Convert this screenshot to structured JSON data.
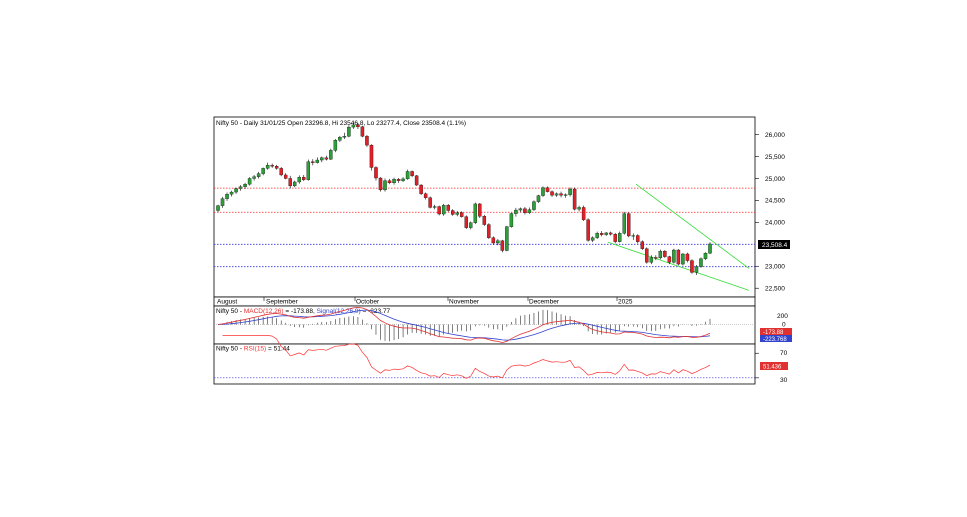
{
  "price_panel": {
    "header": "Nifty 50 - Daily 31/01/25 Open 23296.8, Hi 23546.8, Lo 23277.4, Close 23508.4 (1.1%)",
    "last_price_label": "23,508.4",
    "y_ticks": [
      {
        "value": 26000,
        "label": "26,000"
      },
      {
        "value": 25500,
        "label": "25,500"
      },
      {
        "value": 25000,
        "label": "25,000"
      },
      {
        "value": 24500,
        "label": "24,500"
      },
      {
        "value": 24000,
        "label": "24,000"
      },
      {
        "value": 23000,
        "label": "23,000"
      },
      {
        "value": 22500,
        "label": "22,500"
      }
    ],
    "months": [
      "August",
      "September",
      "October",
      "November",
      "December",
      "2025"
    ]
  },
  "macd_panel": {
    "title_prefix": "Nifty 50 - ",
    "macd_label": "MACD(12,26)",
    "macd_value": " = -173.88, ",
    "signal_label": "Signal(12,26,9)",
    "signal_value": " = -223.77",
    "y_ticks": [
      {
        "value": 200,
        "label": "200"
      },
      {
        "value": 0,
        "label": "0"
      }
    ],
    "badge_macd": "-173.88",
    "badge_signal": "-223.768"
  },
  "rsi_panel": {
    "title_prefix": "Nifty 50 - ",
    "rsi_label": "RSI(15)",
    "rsi_value": " = 51.44",
    "y_ticks": [
      {
        "value": 70,
        "label": "70"
      },
      {
        "value": 30,
        "label": "30"
      }
    ],
    "badge": "51.436"
  },
  "colors": {
    "up": "#2e9e3a",
    "down": "#e01f26",
    "macd": "#e03030",
    "signal": "#3344cc",
    "rsi": "#ff3030",
    "channel": "#33dd33",
    "resistance": "#ff2020",
    "support": "#3333dd"
  },
  "chart_data": {
    "type": "candlestick",
    "series_name": "Nifty 50",
    "ylim": [
      22300,
      26400
    ],
    "horizontal_lines": [
      {
        "value": 24780,
        "style": "dotted",
        "color": "red"
      },
      {
        "value": 24230,
        "style": "dotted",
        "color": "red"
      },
      {
        "value": 23500,
        "style": "dotted",
        "color": "blue"
      },
      {
        "value": 22990,
        "style": "dotted",
        "color": "blue"
      }
    ],
    "trend_channel": {
      "upper": [
        {
          "date": "2024-12-27",
          "value": 24870
        },
        {
          "date": "2025-02-05",
          "value": 22950
        }
      ],
      "lower": [
        {
          "date": "2024-12-17",
          "value": 23550
        },
        {
          "date": "2025-02-05",
          "value": 22450
        }
      ]
    },
    "candles": [
      {
        "o": 24270,
        "h": 24400,
        "l": 24230,
        "c": 24380
      },
      {
        "o": 24380,
        "h": 24580,
        "l": 24330,
        "c": 24540
      },
      {
        "o": 24540,
        "h": 24680,
        "l": 24490,
        "c": 24640
      },
      {
        "o": 24640,
        "h": 24720,
        "l": 24590,
        "c": 24690
      },
      {
        "o": 24690,
        "h": 24790,
        "l": 24650,
        "c": 24770
      },
      {
        "o": 24770,
        "h": 24850,
        "l": 24720,
        "c": 24810
      },
      {
        "o": 24810,
        "h": 24900,
        "l": 24760,
        "c": 24870
      },
      {
        "o": 24870,
        "h": 25030,
        "l": 24840,
        "c": 25000
      },
      {
        "o": 25000,
        "h": 25080,
        "l": 24950,
        "c": 25040
      },
      {
        "o": 25040,
        "h": 25150,
        "l": 25000,
        "c": 25110
      },
      {
        "o": 25110,
        "h": 25250,
        "l": 25070,
        "c": 25230
      },
      {
        "o": 25230,
        "h": 25360,
        "l": 25200,
        "c": 25300
      },
      {
        "o": 25300,
        "h": 25340,
        "l": 25240,
        "c": 25280
      },
      {
        "o": 25280,
        "h": 25310,
        "l": 25200,
        "c": 25230
      },
      {
        "o": 25230,
        "h": 25260,
        "l": 25050,
        "c": 25080
      },
      {
        "o": 25080,
        "h": 25120,
        "l": 24980,
        "c": 25000
      },
      {
        "o": 25000,
        "h": 25060,
        "l": 24770,
        "c": 24830
      },
      {
        "o": 24830,
        "h": 24950,
        "l": 24800,
        "c": 24920
      },
      {
        "o": 24920,
        "h": 25070,
        "l": 24880,
        "c": 25030
      },
      {
        "o": 25030,
        "h": 25080,
        "l": 24940,
        "c": 24970
      },
      {
        "o": 24970,
        "h": 25430,
        "l": 24950,
        "c": 25380
      },
      {
        "o": 25380,
        "h": 25440,
        "l": 25300,
        "c": 25360
      },
      {
        "o": 25360,
        "h": 25480,
        "l": 25340,
        "c": 25420
      },
      {
        "o": 25420,
        "h": 25500,
        "l": 25370,
        "c": 25470
      },
      {
        "o": 25470,
        "h": 25520,
        "l": 25410,
        "c": 25440
      },
      {
        "o": 25440,
        "h": 25680,
        "l": 25420,
        "c": 25640
      },
      {
        "o": 25640,
        "h": 25900,
        "l": 25600,
        "c": 25870
      },
      {
        "o": 25870,
        "h": 25970,
        "l": 25830,
        "c": 25940
      },
      {
        "o": 25940,
        "h": 26040,
        "l": 25900,
        "c": 25960
      },
      {
        "o": 25960,
        "h": 26210,
        "l": 25940,
        "c": 26170
      },
      {
        "o": 26170,
        "h": 26280,
        "l": 26130,
        "c": 26220
      },
      {
        "o": 26220,
        "h": 26260,
        "l": 26130,
        "c": 26180
      },
      {
        "o": 26180,
        "h": 26200,
        "l": 25940,
        "c": 25960
      },
      {
        "o": 25960,
        "h": 25990,
        "l": 25720,
        "c": 25760
      },
      {
        "o": 25760,
        "h": 25780,
        "l": 25180,
        "c": 25250
      },
      {
        "o": 25250,
        "h": 25280,
        "l": 24950,
        "c": 25010
      },
      {
        "o": 25010,
        "h": 25030,
        "l": 24700,
        "c": 24740
      },
      {
        "o": 24740,
        "h": 25000,
        "l": 24700,
        "c": 24950
      },
      {
        "o": 24950,
        "h": 24990,
        "l": 24870,
        "c": 24900
      },
      {
        "o": 24900,
        "h": 25020,
        "l": 24860,
        "c": 24980
      },
      {
        "o": 24980,
        "h": 25010,
        "l": 24900,
        "c": 24950
      },
      {
        "o": 24950,
        "h": 25030,
        "l": 24920,
        "c": 24990
      },
      {
        "o": 24990,
        "h": 25200,
        "l": 24970,
        "c": 25160
      },
      {
        "o": 25160,
        "h": 25180,
        "l": 25030,
        "c": 25060
      },
      {
        "o": 25060,
        "h": 25080,
        "l": 24830,
        "c": 24850
      },
      {
        "o": 24850,
        "h": 24870,
        "l": 24620,
        "c": 24650
      },
      {
        "o": 24650,
        "h": 24680,
        "l": 24520,
        "c": 24560
      },
      {
        "o": 24560,
        "h": 24590,
        "l": 24320,
        "c": 24340
      },
      {
        "o": 24340,
        "h": 24400,
        "l": 24300,
        "c": 24360
      },
      {
        "o": 24360,
        "h": 24380,
        "l": 24160,
        "c": 24190
      },
      {
        "o": 24190,
        "h": 24420,
        "l": 24150,
        "c": 24390
      },
      {
        "o": 24390,
        "h": 24420,
        "l": 24240,
        "c": 24270
      },
      {
        "o": 24270,
        "h": 24300,
        "l": 24150,
        "c": 24180
      },
      {
        "o": 24180,
        "h": 24260,
        "l": 24140,
        "c": 24220
      },
      {
        "o": 24220,
        "h": 24250,
        "l": 24110,
        "c": 24130
      },
      {
        "o": 24130,
        "h": 24160,
        "l": 23850,
        "c": 23880
      },
      {
        "o": 23880,
        "h": 24020,
        "l": 23840,
        "c": 23990
      },
      {
        "o": 23990,
        "h": 24450,
        "l": 23960,
        "c": 24420
      },
      {
        "o": 24420,
        "h": 24440,
        "l": 24100,
        "c": 24140
      },
      {
        "o": 24140,
        "h": 24170,
        "l": 23920,
        "c": 23950
      },
      {
        "o": 23950,
        "h": 23980,
        "l": 23620,
        "c": 23650
      },
      {
        "o": 23650,
        "h": 23680,
        "l": 23490,
        "c": 23530
      },
      {
        "o": 23530,
        "h": 23620,
        "l": 23480,
        "c": 23580
      },
      {
        "o": 23580,
        "h": 23600,
        "l": 23320,
        "c": 23360
      },
      {
        "o": 23360,
        "h": 23920,
        "l": 23340,
        "c": 23900
      },
      {
        "o": 23900,
        "h": 24220,
        "l": 23880,
        "c": 24200
      },
      {
        "o": 24200,
        "h": 24330,
        "l": 24130,
        "c": 24280
      },
      {
        "o": 24280,
        "h": 24340,
        "l": 24230,
        "c": 24310
      },
      {
        "o": 24310,
        "h": 24350,
        "l": 24180,
        "c": 24220
      },
      {
        "o": 24220,
        "h": 24340,
        "l": 24190,
        "c": 24290
      },
      {
        "o": 24290,
        "h": 24500,
        "l": 24260,
        "c": 24470
      },
      {
        "o": 24470,
        "h": 24630,
        "l": 24440,
        "c": 24610
      },
      {
        "o": 24610,
        "h": 24820,
        "l": 24580,
        "c": 24790
      },
      {
        "o": 24790,
        "h": 24820,
        "l": 24680,
        "c": 24700
      },
      {
        "o": 24700,
        "h": 24730,
        "l": 24580,
        "c": 24620
      },
      {
        "o": 24620,
        "h": 24680,
        "l": 24580,
        "c": 24650
      },
      {
        "o": 24650,
        "h": 24700,
        "l": 24570,
        "c": 24620
      },
      {
        "o": 24620,
        "h": 24660,
        "l": 24560,
        "c": 24630
      },
      {
        "o": 24630,
        "h": 24790,
        "l": 24590,
        "c": 24760
      },
      {
        "o": 24760,
        "h": 24790,
        "l": 24270,
        "c": 24300
      },
      {
        "o": 24300,
        "h": 24380,
        "l": 24250,
        "c": 24340
      },
      {
        "o": 24340,
        "h": 24380,
        "l": 24030,
        "c": 24060
      },
      {
        "o": 24060,
        "h": 24090,
        "l": 23560,
        "c": 23590
      },
      {
        "o": 23590,
        "h": 23680,
        "l": 23550,
        "c": 23650
      },
      {
        "o": 23650,
        "h": 23790,
        "l": 23620,
        "c": 23750
      },
      {
        "o": 23750,
        "h": 23800,
        "l": 23680,
        "c": 23720
      },
      {
        "o": 23720,
        "h": 23780,
        "l": 23690,
        "c": 23760
      },
      {
        "o": 23760,
        "h": 23790,
        "l": 23700,
        "c": 23730
      },
      {
        "o": 23730,
        "h": 23760,
        "l": 23520,
        "c": 23560
      },
      {
        "o": 23560,
        "h": 23790,
        "l": 23540,
        "c": 23750
      },
      {
        "o": 23750,
        "h": 24240,
        "l": 23720,
        "c": 24200
      },
      {
        "o": 24200,
        "h": 24230,
        "l": 23660,
        "c": 23690
      },
      {
        "o": 23690,
        "h": 23750,
        "l": 23600,
        "c": 23700
      },
      {
        "o": 23700,
        "h": 23730,
        "l": 23520,
        "c": 23560
      },
      {
        "o": 23560,
        "h": 23590,
        "l": 23370,
        "c": 23400
      },
      {
        "o": 23400,
        "h": 23430,
        "l": 23060,
        "c": 23090
      },
      {
        "o": 23090,
        "h": 23250,
        "l": 23050,
        "c": 23200
      },
      {
        "o": 23200,
        "h": 23250,
        "l": 23140,
        "c": 23190
      },
      {
        "o": 23190,
        "h": 23380,
        "l": 23160,
        "c": 23340
      },
      {
        "o": 23340,
        "h": 23370,
        "l": 23190,
        "c": 23220
      },
      {
        "o": 23220,
        "h": 23240,
        "l": 23050,
        "c": 23090
      },
      {
        "o": 23090,
        "h": 23400,
        "l": 23060,
        "c": 23370
      },
      {
        "o": 23370,
        "h": 23390,
        "l": 23020,
        "c": 23050
      },
      {
        "o": 23050,
        "h": 23300,
        "l": 23020,
        "c": 23280
      },
      {
        "o": 23280,
        "h": 23310,
        "l": 23090,
        "c": 23130
      },
      {
        "o": 23130,
        "h": 23160,
        "l": 22830,
        "c": 22860
      },
      {
        "o": 22860,
        "h": 23030,
        "l": 22800,
        "c": 22990
      },
      {
        "o": 22990,
        "h": 23200,
        "l": 22970,
        "c": 23170
      },
      {
        "o": 23170,
        "h": 23320,
        "l": 23140,
        "c": 23300
      },
      {
        "o": 23296.8,
        "h": 23546.8,
        "l": 23277.4,
        "c": 23508.4
      }
    ],
    "macd": {
      "last": -173.88,
      "signal_last": -223.77,
      "ylim": [
        -400,
        380
      ]
    },
    "rsi": {
      "last": 51.44,
      "ylim": [
        20,
        85
      ]
    }
  }
}
